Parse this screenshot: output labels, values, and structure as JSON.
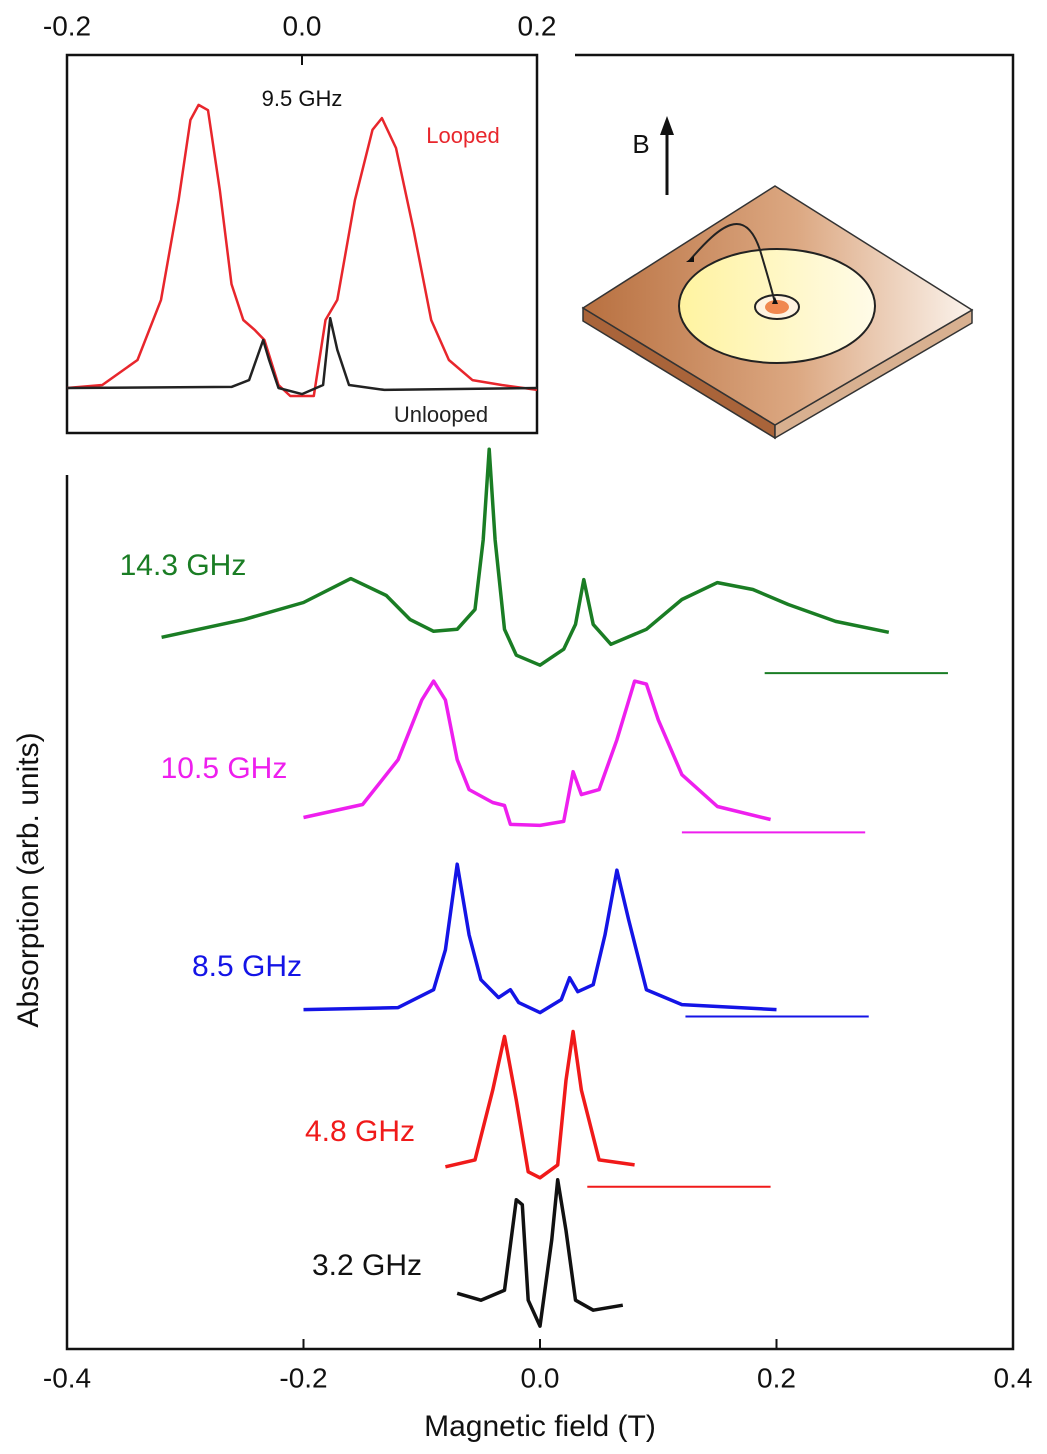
{
  "chart_data": [
    {
      "type": "line",
      "title": "9.5 GHz",
      "xlim": [
        -0.2,
        0.2
      ],
      "xticks": [
        -0.2,
        {
          "value": 0,
          "label": "0.0"
        },
        0.2
      ],
      "ylim": [
        0,
        100
      ],
      "series": [
        {
          "name": "Looped",
          "color": "#e8262c",
          "x": [
            -0.2,
            -0.17,
            -0.14,
            -0.12,
            -0.105,
            -0.095,
            -0.088,
            -0.08,
            -0.07,
            -0.06,
            -0.05,
            -0.04,
            -0.032,
            -0.02,
            -0.01,
            0.01,
            0.02,
            0.03,
            0.045,
            0.06,
            0.068,
            0.08,
            0.095,
            0.11,
            0.125,
            0.145,
            0.17,
            0.2
          ],
          "values": [
            11.9,
            12.7,
            19.3,
            35.2,
            61.6,
            82.8,
            86.8,
            85.4,
            64.3,
            39.4,
            29.9,
            27.2,
            24.6,
            12.7,
            9.8,
            9.8,
            29.9,
            35.2,
            61.6,
            80.2,
            83.3,
            75.4,
            53.7,
            29.9,
            19.3,
            14.0,
            12.7,
            11.4
          ]
        },
        {
          "name": "Unlooped",
          "color": "#222222",
          "x": [
            -0.2,
            -0.06,
            -0.045,
            -0.033,
            -0.028,
            -0.02,
            0,
            0.018,
            0.024,
            0.03,
            0.04,
            0.07,
            0.2
          ],
          "values": [
            11.9,
            12.2,
            14.0,
            24.6,
            19.3,
            11.9,
            10.3,
            12.7,
            30.4,
            22.0,
            12.7,
            11.4,
            11.9
          ]
        }
      ]
    },
    {
      "type": "line",
      "xlabel": "Magnetic field (T)",
      "ylabel": "Absorption (arb. units)",
      "xlim": [
        -0.4,
        0.4
      ],
      "xticks": [
        -0.4,
        -0.2,
        {
          "value": 0,
          "label": "0.0"
        },
        0.2,
        0.4
      ],
      "ylim": [
        0,
        130
      ],
      "series": [
        {
          "name": "14.3 GHz",
          "color": "#1a7d24",
          "x": [
            -0.32,
            -0.25,
            -0.2,
            -0.16,
            -0.13,
            -0.11,
            -0.09,
            -0.07,
            -0.055,
            -0.048,
            -0.043,
            -0.038,
            -0.03,
            -0.02,
            0,
            0.02,
            0.03,
            0.037,
            0.045,
            0.06,
            0.09,
            0.12,
            0.15,
            0.18,
            0.21,
            0.25,
            0.295
          ],
          "values": [
            71.5,
            73.3,
            75.0,
            77.4,
            75.7,
            73.3,
            72.1,
            72.3,
            74.3,
            81.3,
            90.4,
            81.3,
            72.3,
            69.7,
            68.7,
            70.3,
            72.8,
            77.3,
            72.8,
            70.8,
            72.3,
            75.3,
            77.0,
            76.3,
            74.8,
            73.1,
            72.0
          ],
          "baseline": {
            "x": [
              0.19,
              0.345
            ],
            "value": 67.9
          }
        },
        {
          "name": "10.5 GHz",
          "color": "#ee1fee",
          "x": [
            -0.2,
            -0.15,
            -0.12,
            -0.1,
            -0.09,
            -0.08,
            -0.07,
            -0.06,
            -0.04,
            -0.03,
            -0.025,
            0,
            0.02,
            0.028,
            0.035,
            0.05,
            0.065,
            0.08,
            0.09,
            0.1,
            0.12,
            0.15,
            0.195
          ],
          "values": [
            53.4,
            54.7,
            59.2,
            65.2,
            67.1,
            65.2,
            59.2,
            56.2,
            54.9,
            54.6,
            52.7,
            52.6,
            53.0,
            58.0,
            55.7,
            56.2,
            61.2,
            67.1,
            66.8,
            63.2,
            57.7,
            54.5,
            53.2
          ],
          "baseline": {
            "x": [
              0.12,
              0.275
            ],
            "value": 51.9
          }
        },
        {
          "name": "8.5 GHz",
          "color": "#1414e6",
          "x": [
            -0.2,
            -0.12,
            -0.09,
            -0.08,
            -0.07,
            -0.06,
            -0.05,
            -0.035,
            -0.025,
            -0.018,
            0,
            0.018,
            0.025,
            0.032,
            0.045,
            0.055,
            0.065,
            0.075,
            0.09,
            0.12,
            0.2
          ],
          "values": [
            34.1,
            34.3,
            36.1,
            40.1,
            48.7,
            41.6,
            37.1,
            35.3,
            36.1,
            34.8,
            33.8,
            35.1,
            37.3,
            35.9,
            36.6,
            41.6,
            48.1,
            43.1,
            36.1,
            34.6,
            34.1
          ],
          "baseline": {
            "x": [
              0.123,
              0.278
            ],
            "value": 33.4
          }
        },
        {
          "name": "4.8 GHz",
          "color": "#f01a1a",
          "x": [
            -0.08,
            -0.055,
            -0.04,
            -0.03,
            -0.02,
            -0.01,
            0,
            0.015,
            0.022,
            0.028,
            0.035,
            0.05,
            0.08
          ],
          "values": [
            18.3,
            19.0,
            26.0,
            31.4,
            25.0,
            17.8,
            17.2,
            18.5,
            27.0,
            31.9,
            26.0,
            19.0,
            18.5
          ],
          "baseline": {
            "x": [
              0.04,
              0.195
            ],
            "value": 16.3
          }
        },
        {
          "name": "3.2 GHz",
          "color": "#111111",
          "x": [
            -0.07,
            -0.05,
            -0.03,
            -0.02,
            -0.015,
            -0.01,
            0,
            0.01,
            0.015,
            0.022,
            0.03,
            0.045,
            0.07
          ],
          "values": [
            5.6,
            4.9,
            5.9,
            15.0,
            14.5,
            4.9,
            2.3,
            11.0,
            17.0,
            11.9,
            4.9,
            3.9,
            4.4
          ]
        }
      ]
    }
  ],
  "diagram": {
    "field_label": "B"
  }
}
